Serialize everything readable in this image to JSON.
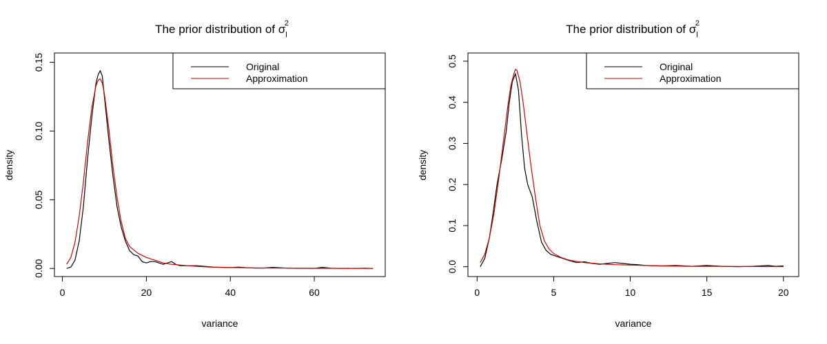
{
  "chart_data": [
    {
      "type": "line",
      "title": "The prior distribution of σ",
      "title_sup": "2",
      "title_sub": "l",
      "xlabel": "variance",
      "ylabel": "density",
      "xlim": [
        -1.9,
        76.9
      ],
      "ylim": [
        -0.0059,
        0.1568
      ],
      "x_ticks": [
        0,
        20,
        40,
        60
      ],
      "x_tick_labels": [
        "0",
        "20",
        "40",
        "60"
      ],
      "y_ticks": [
        0.0,
        0.05,
        0.1,
        0.15
      ],
      "y_tick_labels": [
        "0.00",
        "0.05",
        "0.10",
        "0.15"
      ],
      "grid": false,
      "legend_position": "top-right",
      "legend": [
        "Original",
        "Approximation"
      ],
      "series": [
        {
          "name": "Original",
          "color": "#000000",
          "x": [
            1,
            2,
            3,
            4,
            5,
            6,
            7,
            8,
            8.5,
            9,
            9.5,
            10,
            11,
            12,
            13,
            14,
            15,
            16,
            17,
            18,
            19,
            20,
            21,
            22,
            23,
            24,
            25,
            26,
            27,
            28,
            30,
            32,
            34,
            36,
            38,
            40,
            42,
            44,
            46,
            48,
            50,
            52,
            54,
            56,
            58,
            60,
            62,
            64,
            66,
            68,
            70,
            72,
            74
          ],
          "y": [
            0.0,
            0.001,
            0.006,
            0.02,
            0.045,
            0.08,
            0.11,
            0.135,
            0.141,
            0.144,
            0.14,
            0.125,
            0.095,
            0.068,
            0.045,
            0.03,
            0.02,
            0.013,
            0.01,
            0.009,
            0.005,
            0.004,
            0.005,
            0.005,
            0.004,
            0.003,
            0.004,
            0.005,
            0.003,
            0.002,
            0.002,
            0.002,
            0.0015,
            0.001,
            0.0008,
            0.0006,
            0.001,
            0.0005,
            0.0003,
            0.0003,
            0.0008,
            0.0005,
            0.0002,
            0.0001,
            0.0001,
            0.0001,
            0.0008,
            0.0002,
            0.0,
            0.0001,
            0.0,
            0.0002,
            0.0
          ]
        },
        {
          "name": "Approximation",
          "color": "#cc0000",
          "x": [
            1,
            2,
            3,
            4,
            5,
            6,
            7,
            8,
            8.5,
            9,
            9.5,
            10,
            11,
            12,
            13,
            14,
            15,
            16,
            18,
            20,
            22,
            24,
            26,
            28,
            30,
            32,
            35,
            40,
            45,
            50,
            55,
            60,
            65,
            70,
            74
          ],
          "y": [
            0.003,
            0.008,
            0.019,
            0.038,
            0.063,
            0.092,
            0.117,
            0.133,
            0.137,
            0.138,
            0.135,
            0.127,
            0.103,
            0.075,
            0.052,
            0.034,
            0.022,
            0.016,
            0.011,
            0.008,
            0.006,
            0.004,
            0.003,
            0.0025,
            0.002,
            0.0015,
            0.001,
            0.0007,
            0.0004,
            0.0003,
            0.0002,
            0.0001,
            0.0001,
            0.0,
            0.0
          ]
        }
      ]
    },
    {
      "type": "line",
      "title": "The prior distribution of σ",
      "title_sup": "2",
      "title_sub": "l",
      "xlabel": "variance",
      "ylabel": "density",
      "xlim": [
        -0.6,
        21.0
      ],
      "ylim": [
        -0.024,
        0.52
      ],
      "x_ticks": [
        0,
        5,
        10,
        15,
        20
      ],
      "x_tick_labels": [
        "0",
        "5",
        "10",
        "15",
        "20"
      ],
      "y_ticks": [
        0.0,
        0.1,
        0.2,
        0.3,
        0.4,
        0.5
      ],
      "y_tick_labels": [
        "0.0",
        "0.1",
        "0.2",
        "0.3",
        "0.4",
        "0.5"
      ],
      "grid": false,
      "legend_position": "top-right",
      "legend": [
        "Original",
        "Approximation"
      ],
      "series": [
        {
          "name": "Original",
          "color": "#000000",
          "x": [
            0.2,
            0.5,
            0.8,
            1.0,
            1.3,
            1.6,
            1.9,
            2.1,
            2.3,
            2.5,
            2.7,
            2.9,
            3.1,
            3.3,
            3.6,
            3.9,
            4.2,
            4.5,
            4.8,
            5.2,
            5.6,
            6.0,
            6.5,
            7.0,
            7.5,
            8.0,
            8.5,
            9.0,
            9.5,
            10.0,
            10.5,
            11.0,
            12.0,
            13.0,
            14.0,
            15.0,
            16.0,
            17.0,
            18.0,
            19.0,
            19.5,
            20.0
          ],
          "y": [
            0.0,
            0.02,
            0.07,
            0.12,
            0.2,
            0.26,
            0.33,
            0.4,
            0.45,
            0.47,
            0.43,
            0.32,
            0.24,
            0.2,
            0.17,
            0.11,
            0.06,
            0.04,
            0.03,
            0.025,
            0.02,
            0.015,
            0.01,
            0.012,
            0.008,
            0.006,
            0.008,
            0.01,
            0.008,
            0.006,
            0.005,
            0.003,
            0.002,
            0.003,
            0.001,
            0.003,
            0.001,
            0.0,
            0.001,
            0.003,
            0.001,
            0.002
          ]
        },
        {
          "name": "Approximation",
          "color": "#cc0000",
          "x": [
            0.2,
            0.5,
            0.8,
            1.1,
            1.4,
            1.7,
            2.0,
            2.2,
            2.4,
            2.5,
            2.6,
            2.8,
            3.0,
            3.2,
            3.5,
            3.8,
            4.1,
            4.4,
            4.7,
            5.0,
            5.5,
            6.0,
            7.0,
            8.0,
            9.0,
            10.0,
            12.0,
            14.0,
            16.0,
            18.0,
            20.0
          ],
          "y": [
            0.01,
            0.03,
            0.07,
            0.13,
            0.21,
            0.3,
            0.39,
            0.44,
            0.47,
            0.48,
            0.478,
            0.45,
            0.4,
            0.34,
            0.25,
            0.17,
            0.1,
            0.062,
            0.043,
            0.032,
            0.022,
            0.016,
            0.01,
            0.007,
            0.005,
            0.004,
            0.002,
            0.001,
            0.0008,
            0.0005,
            0.0003
          ]
        }
      ]
    }
  ]
}
